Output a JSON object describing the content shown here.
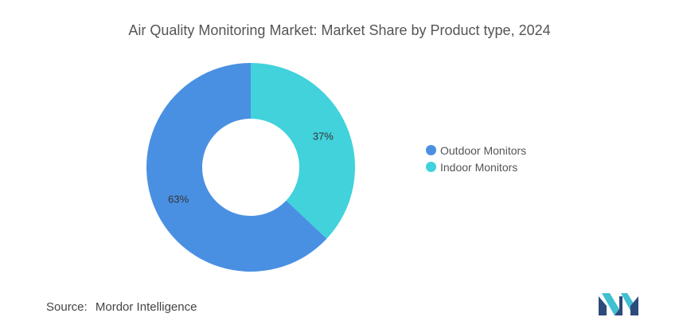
{
  "title": "Air Quality Monitoring Market: Market Share by Product type, 2024",
  "source": {
    "label": "Source:",
    "value": "Mordor Intelligence"
  },
  "colors": {
    "outdoor": "#4a90e2",
    "indoor": "#41d2dc"
  },
  "chart_data": {
    "type": "pie",
    "title": "Air Quality Monitoring Market: Market Share by Product type, 2024",
    "donut": true,
    "legend_position": "right",
    "series": [
      {
        "name": "Outdoor Monitors",
        "value": 63,
        "label": "63%",
        "color": "#4a90e2"
      },
      {
        "name": "Indoor Monitors",
        "value": 37,
        "label": "37%",
        "color": "#41d2dc"
      }
    ]
  }
}
